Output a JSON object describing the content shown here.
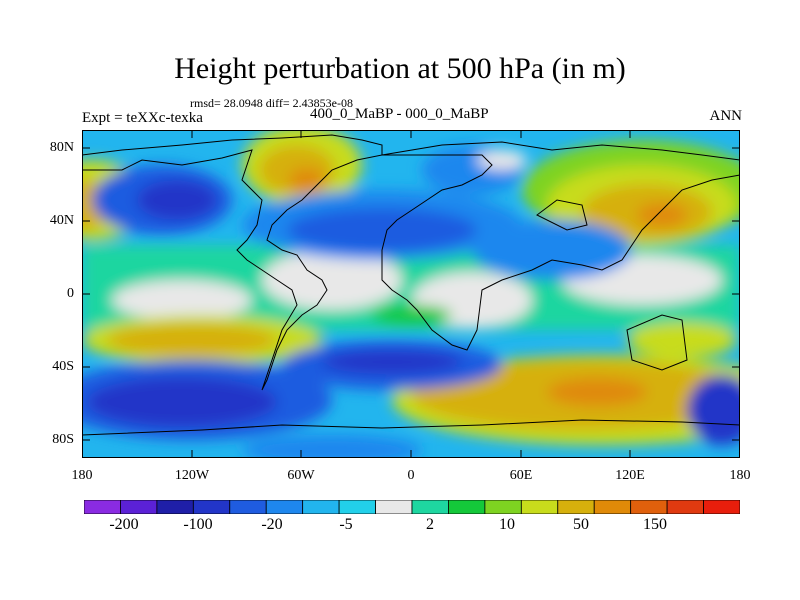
{
  "title": "Height perturbation at 500 hPa (in m)",
  "stats": "rmsd= 28.0948 diff= 2.43853e-08",
  "experiment": "Expt = teXXc-texka",
  "period": "400_0_MaBP - 000_0_MaBP",
  "season": "ANN",
  "map": {
    "lon_range": [
      -180,
      180
    ],
    "lat_range": [
      -90,
      90
    ],
    "lat_ticks": [
      "80N",
      "40N",
      "0",
      "40S",
      "80S"
    ],
    "lon_ticks": [
      "180",
      "120W",
      "60W",
      "0",
      "60E",
      "120E",
      "180"
    ]
  },
  "colorbar": {
    "colors": [
      "#8a2be2",
      "#5b21d6",
      "#1f1fa8",
      "#2235c8",
      "#1f5ce0",
      "#1e87ee",
      "#22b5ee",
      "#22d0ea",
      "#e8e8e8",
      "#1ed6a0",
      "#14c83a",
      "#7ed321",
      "#c8dc1c",
      "#d6b00c",
      "#e08a08",
      "#e0600c",
      "#e03a10",
      "#e81e0c"
    ],
    "labels": [
      "-200",
      "-100",
      "-20",
      "-5",
      "2",
      "10",
      "50",
      "150"
    ]
  }
}
